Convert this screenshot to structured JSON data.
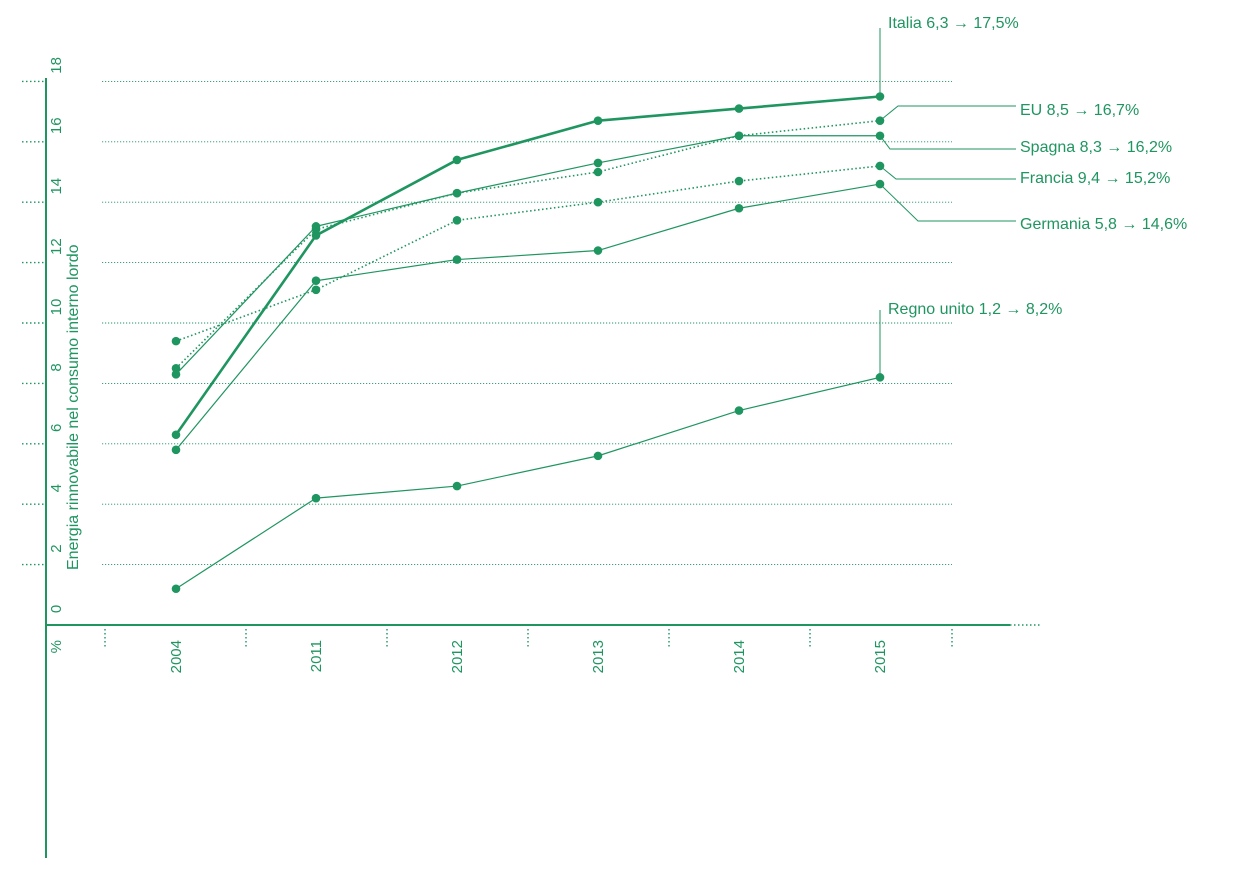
{
  "chart_data": {
    "type": "line",
    "ylabel": "Energia rinnovabile nel consumo interno lordo",
    "y_unit": "%",
    "ylim": [
      0,
      18
    ],
    "y_ticks": [
      "0",
      "2",
      "4",
      "6",
      "8",
      "10",
      "12",
      "14",
      "16",
      "18"
    ],
    "categories": [
      "2004",
      "2011",
      "2012",
      "2013",
      "2014",
      "2015"
    ],
    "grid": true,
    "colors": {
      "accent": "#1f9560"
    },
    "series": [
      {
        "name": "Italia",
        "values": [
          6.3,
          12.9,
          15.4,
          16.7,
          17.1,
          17.5
        ],
        "style": "solid-bold",
        "label": "Italia  6,3 → 17,5%"
      },
      {
        "name": "EU",
        "values": [
          8.5,
          13.1,
          14.3,
          15.0,
          16.2,
          16.7
        ],
        "style": "dotted",
        "label": "EU  8,5 → 16,7%"
      },
      {
        "name": "Spagna",
        "values": [
          8.3,
          13.2,
          14.3,
          15.3,
          16.2,
          16.2
        ],
        "style": "solid",
        "label": "Spagna  8,3 → 16,2%"
      },
      {
        "name": "Francia",
        "values": [
          9.4,
          11.1,
          13.4,
          14.0,
          14.7,
          15.2
        ],
        "style": "dotted",
        "label": "Francia  9,4 → 15,2%"
      },
      {
        "name": "Germania",
        "values": [
          5.8,
          11.4,
          12.1,
          12.4,
          13.8,
          14.6
        ],
        "style": "solid",
        "label": "Germania  5,8 → 14,6%"
      },
      {
        "name": "Regno unito",
        "values": [
          1.2,
          4.2,
          4.6,
          5.6,
          7.1,
          8.2
        ],
        "style": "solid",
        "label": "Regno unito  1,2 → 8,2%"
      }
    ]
  }
}
